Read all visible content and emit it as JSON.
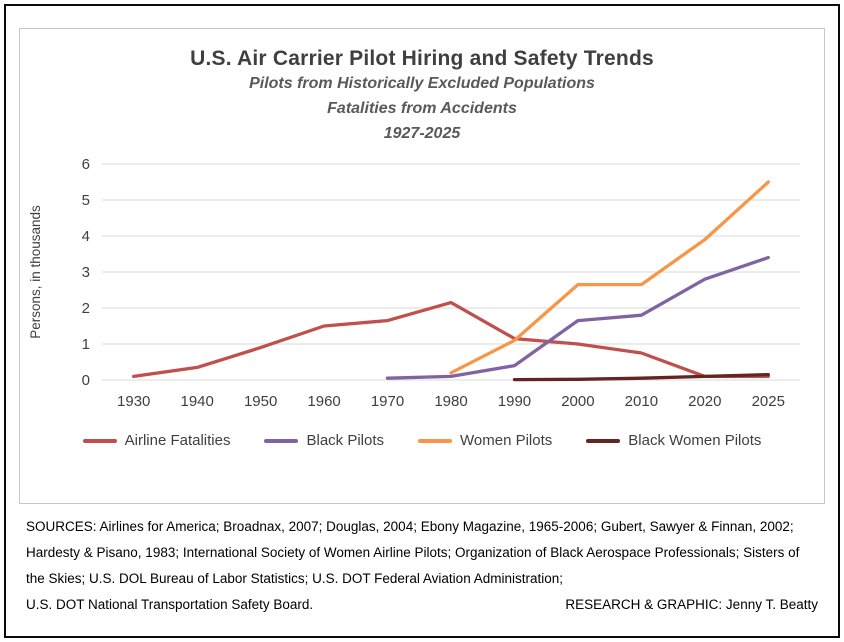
{
  "chart_data": {
    "type": "line",
    "title": "U.S. Air Carrier Pilot Hiring and Safety Trends",
    "subtitle_lines": [
      "Pilots from Historically Excluded Populations",
      "Fatalities from Accidents",
      "1927-2025"
    ],
    "ylabel": "Persons, in thousands",
    "ylim": [
      0,
      6
    ],
    "yticks": [
      0,
      1,
      2,
      3,
      4,
      5,
      6
    ],
    "categories": [
      "1930",
      "1940",
      "1950",
      "1960",
      "1970",
      "1980",
      "1990",
      "2000",
      "2010",
      "2020",
      "2025"
    ],
    "grid": true,
    "grid_color": "#d9d9d9",
    "legend_position": "bottom",
    "series": [
      {
        "name": "Airline Fatalities",
        "color": "#c0504d",
        "x": [
          "1930",
          "1940",
          "1950",
          "1960",
          "1970",
          "1980",
          "1990",
          "2000",
          "2010",
          "2020",
          "2025"
        ],
        "values": [
          0.1,
          0.35,
          0.9,
          1.5,
          1.65,
          2.15,
          1.15,
          1.0,
          0.75,
          0.1,
          0.1
        ]
      },
      {
        "name": "Black Pilots",
        "color": "#8064a2",
        "x": [
          "1970",
          "1980",
          "1990",
          "2000",
          "2010",
          "2020",
          "2025"
        ],
        "values": [
          0.05,
          0.1,
          0.4,
          1.65,
          1.8,
          2.8,
          3.4
        ]
      },
      {
        "name": "Women Pilots",
        "color": "#f79646",
        "x": [
          "1980",
          "1990",
          "2000",
          "2010",
          "2020",
          "2025"
        ],
        "values": [
          0.2,
          1.1,
          2.65,
          2.65,
          3.9,
          5.5
        ]
      },
      {
        "name": "Black Women Pilots",
        "color": "#632423",
        "x": [
          "1990",
          "2000",
          "2010",
          "2020",
          "2025"
        ],
        "values": [
          0.01,
          0.02,
          0.05,
          0.1,
          0.15
        ]
      }
    ]
  },
  "footer": {
    "sources": "SOURCES: Airlines for America; Broadnax, 2007; Douglas, 2004; Ebony Magazine, 1965-2006; Gubert, Sawyer & Finnan, 2002; Hardesty & Pisano, 1983; International Society of Women Airline Pilots; Organization of Black Aerospace Professionals; Sisters of the Skies; U.S. DOL Bureau of Labor Statistics; U.S. DOT Federal Aviation Administration;",
    "sources_last": "U.S. DOT National Transportation Safety Board.",
    "credit": "RESEARCH & GRAPHIC: Jenny T. Beatty"
  }
}
